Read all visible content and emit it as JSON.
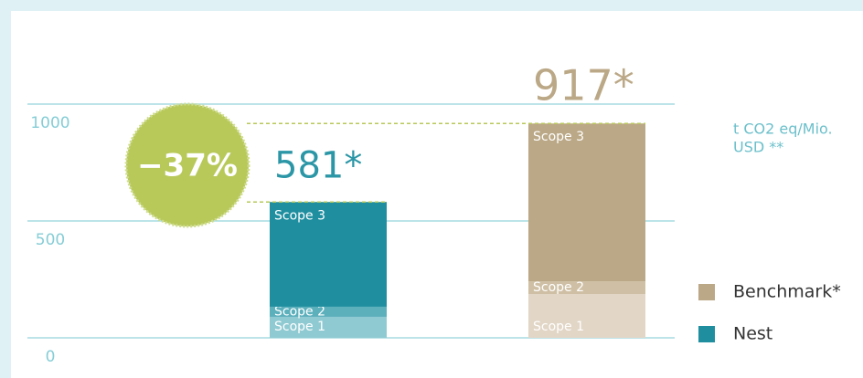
{
  "chart_data": {
    "type": "stacked_bar",
    "annotation": "−37%",
    "unit_label": [
      "t CO2 eq/Mio.",
      "USD **"
    ],
    "segment_labels": [
      "Scope 1",
      "Scope 2",
      "Scope 3"
    ],
    "series": [
      {
        "name": "Nest",
        "color": "#1f8fa0",
        "segment_colors": [
          "#8fcad2",
          "#5bb0bc",
          "#1f8fa0"
        ],
        "values": [
          90,
          43,
          448
        ],
        "total": 581,
        "total_label": "581*",
        "total_color": "#2a96a6"
      },
      {
        "name": "Benchmark*",
        "color": "#bba886",
        "segment_colors": [
          "#e2d6c6",
          "#cfc0a5",
          "#bba886"
        ],
        "values": [
          187,
          55,
          675
        ],
        "total": 917,
        "total_label": "917*",
        "total_color": "#bba886"
      }
    ],
    "ylim": [
      0,
      1000
    ],
    "yticks": [
      0,
      500,
      1000
    ],
    "grid": true
  }
}
